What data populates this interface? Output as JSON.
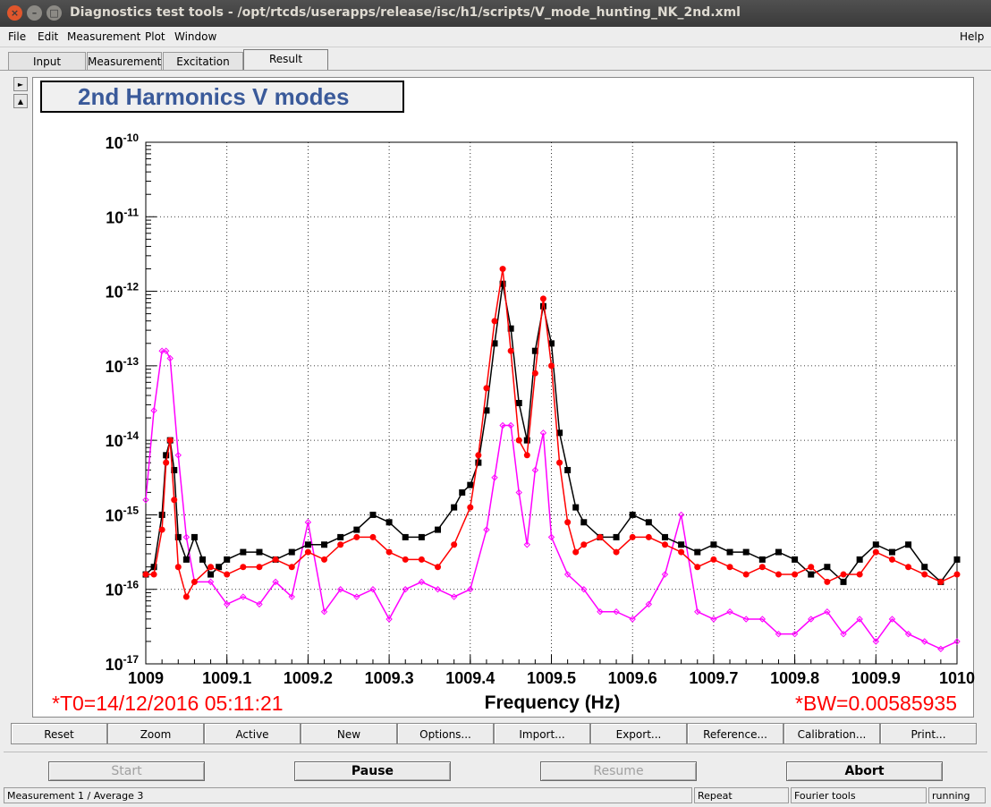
{
  "window": {
    "title": "Diagnostics test tools - /opt/rtcds/userapps/release/isc/h1/scripts/V_mode_hunting_NK_2nd.xml",
    "buttons": {
      "close": "×",
      "minimize": "–",
      "maximize": "□"
    }
  },
  "menu": {
    "items": [
      "File",
      "Edit",
      "Measurement",
      "Plot",
      "Window"
    ],
    "help": "Help"
  },
  "tabs": [
    "Input",
    "Measurement",
    "Excitation",
    "Result"
  ],
  "side_buttons": [
    "►",
    "▲"
  ],
  "plot": {
    "title": "2nd Harmonics V modes",
    "t0_label": "*T0=14/12/2016 05:11:21",
    "bw_label": "*BW=0.00585935",
    "xlabel": "Frequency (Hz)"
  },
  "chart_data": {
    "type": "line",
    "title": "2nd Harmonics V modes",
    "xlabel": "Frequency (Hz)",
    "ylabel": "",
    "xlim": [
      1009.0,
      1010.0
    ],
    "ylim": [
      1e-17,
      1e-10
    ],
    "yscale": "log",
    "grid": true,
    "x_ticks": [
      "1009",
      "1009.1",
      "1009.2",
      "1009.3",
      "1009.4",
      "1009.5",
      "1009.6",
      "1009.7",
      "1009.8",
      "1009.9",
      "1010"
    ],
    "y_ticks": [
      {
        "base": "10",
        "exp": "-17",
        "value": -17
      },
      {
        "base": "10",
        "exp": "-16",
        "value": -16
      },
      {
        "base": "10",
        "exp": "-15",
        "value": -15
      },
      {
        "base": "10",
        "exp": "-14",
        "value": -14
      },
      {
        "base": "10",
        "exp": "-13",
        "value": -13
      },
      {
        "base": "10",
        "exp": "-12",
        "value": -12
      },
      {
        "base": "10",
        "exp": "-11",
        "value": -11
      },
      {
        "base": "10",
        "exp": "-10",
        "value": -10
      }
    ],
    "series": [
      {
        "color": "#000000",
        "marker": "square",
        "x": [
          1009.0,
          1009.01,
          1009.02,
          1009.025,
          1009.03,
          1009.035,
          1009.04,
          1009.05,
          1009.06,
          1009.07,
          1009.08,
          1009.09,
          1009.1,
          1009.12,
          1009.14,
          1009.16,
          1009.18,
          1009.2,
          1009.22,
          1009.24,
          1009.26,
          1009.28,
          1009.3,
          1009.32,
          1009.34,
          1009.36,
          1009.38,
          1009.39,
          1009.4,
          1009.41,
          1009.42,
          1009.43,
          1009.44,
          1009.45,
          1009.46,
          1009.47,
          1009.48,
          1009.49,
          1009.5,
          1009.51,
          1009.52,
          1009.53,
          1009.54,
          1009.56,
          1009.58,
          1009.6,
          1009.62,
          1009.64,
          1009.66,
          1009.68,
          1009.7,
          1009.72,
          1009.74,
          1009.76,
          1009.78,
          1009.8,
          1009.82,
          1009.84,
          1009.86,
          1009.88,
          1009.9,
          1009.92,
          1009.94,
          1009.96,
          1009.98,
          1010.0
        ],
        "log_y": [
          -15.8,
          -15.7,
          -15.0,
          -14.2,
          -14.0,
          -14.4,
          -15.3,
          -15.6,
          -15.3,
          -15.6,
          -15.8,
          -15.7,
          -15.6,
          -15.5,
          -15.5,
          -15.6,
          -15.5,
          -15.4,
          -15.4,
          -15.3,
          -15.2,
          -15.0,
          -15.1,
          -15.3,
          -15.3,
          -15.2,
          -14.9,
          -14.7,
          -14.6,
          -14.3,
          -13.6,
          -12.7,
          -11.9,
          -12.5,
          -13.5,
          -14.0,
          -12.8,
          -12.2,
          -12.7,
          -13.9,
          -14.4,
          -14.9,
          -15.1,
          -15.3,
          -15.3,
          -15.0,
          -15.1,
          -15.3,
          -15.4,
          -15.5,
          -15.4,
          -15.5,
          -15.5,
          -15.6,
          -15.5,
          -15.6,
          -15.8,
          -15.7,
          -15.9,
          -15.6,
          -15.4,
          -15.5,
          -15.4,
          -15.7,
          -15.9,
          -15.6
        ]
      },
      {
        "color": "#ff0000",
        "marker": "circle",
        "x": [
          1009.0,
          1009.01,
          1009.02,
          1009.025,
          1009.03,
          1009.035,
          1009.04,
          1009.05,
          1009.06,
          1009.08,
          1009.1,
          1009.12,
          1009.14,
          1009.16,
          1009.18,
          1009.2,
          1009.22,
          1009.24,
          1009.26,
          1009.28,
          1009.3,
          1009.32,
          1009.34,
          1009.36,
          1009.38,
          1009.4,
          1009.41,
          1009.42,
          1009.43,
          1009.44,
          1009.45,
          1009.46,
          1009.47,
          1009.48,
          1009.49,
          1009.5,
          1009.51,
          1009.52,
          1009.53,
          1009.54,
          1009.56,
          1009.58,
          1009.6,
          1009.62,
          1009.64,
          1009.66,
          1009.68,
          1009.7,
          1009.72,
          1009.74,
          1009.76,
          1009.78,
          1009.8,
          1009.82,
          1009.84,
          1009.86,
          1009.88,
          1009.9,
          1009.92,
          1009.94,
          1009.96,
          1009.98,
          1010.0
        ],
        "log_y": [
          -15.8,
          -15.8,
          -15.2,
          -14.3,
          -14.0,
          -14.8,
          -15.7,
          -16.1,
          -15.9,
          -15.7,
          -15.8,
          -15.7,
          -15.7,
          -15.6,
          -15.7,
          -15.5,
          -15.6,
          -15.4,
          -15.3,
          -15.3,
          -15.5,
          -15.6,
          -15.6,
          -15.7,
          -15.4,
          -14.9,
          -14.2,
          -13.3,
          -12.4,
          -11.7,
          -12.8,
          -14.0,
          -14.2,
          -13.1,
          -12.1,
          -13.0,
          -14.3,
          -15.1,
          -15.5,
          -15.4,
          -15.3,
          -15.5,
          -15.3,
          -15.3,
          -15.4,
          -15.5,
          -15.7,
          -15.6,
          -15.7,
          -15.8,
          -15.7,
          -15.8,
          -15.8,
          -15.7,
          -15.9,
          -15.8,
          -15.8,
          -15.5,
          -15.6,
          -15.7,
          -15.8,
          -15.9,
          -15.8
        ]
      },
      {
        "color": "#ff00ff",
        "marker": "diamond",
        "x": [
          1009.0,
          1009.01,
          1009.02,
          1009.025,
          1009.03,
          1009.04,
          1009.05,
          1009.06,
          1009.08,
          1009.1,
          1009.12,
          1009.14,
          1009.16,
          1009.18,
          1009.2,
          1009.22,
          1009.24,
          1009.26,
          1009.28,
          1009.3,
          1009.32,
          1009.34,
          1009.36,
          1009.38,
          1009.4,
          1009.42,
          1009.43,
          1009.44,
          1009.45,
          1009.46,
          1009.47,
          1009.48,
          1009.49,
          1009.5,
          1009.52,
          1009.54,
          1009.56,
          1009.58,
          1009.6,
          1009.62,
          1009.64,
          1009.66,
          1009.68,
          1009.7,
          1009.72,
          1009.74,
          1009.76,
          1009.78,
          1009.8,
          1009.82,
          1009.84,
          1009.86,
          1009.88,
          1009.9,
          1009.92,
          1009.94,
          1009.96,
          1009.98,
          1010.0
        ],
        "log_y": [
          -14.8,
          -13.6,
          -12.8,
          -12.8,
          -12.9,
          -14.2,
          -15.3,
          -15.9,
          -15.9,
          -16.2,
          -16.1,
          -16.2,
          -15.9,
          -16.1,
          -15.1,
          -16.3,
          -16.0,
          -16.1,
          -16.0,
          -16.4,
          -16.0,
          -15.9,
          -16.0,
          -16.1,
          -16.0,
          -15.2,
          -14.5,
          -13.8,
          -13.8,
          -14.7,
          -15.4,
          -14.4,
          -13.9,
          -15.3,
          -15.8,
          -16.0,
          -16.3,
          -16.3,
          -16.4,
          -16.2,
          -15.8,
          -15.0,
          -16.3,
          -16.4,
          -16.3,
          -16.4,
          -16.4,
          -16.6,
          -16.6,
          -16.4,
          -16.3,
          -16.6,
          -16.4,
          -16.7,
          -16.4,
          -16.6,
          -16.7,
          -16.8,
          -16.7
        ]
      }
    ]
  },
  "buttons": [
    "Reset",
    "Zoom",
    "Active",
    "New",
    "Options...",
    "Import...",
    "Export...",
    "Reference...",
    "Calibration...",
    "Print..."
  ],
  "controls": {
    "start": "Start",
    "pause": "Pause",
    "resume": "Resume",
    "abort": "Abort"
  },
  "status": {
    "left": "Measurement 1 / Average 3",
    "repeat": "Repeat",
    "fourier": "Fourier tools",
    "state": "running"
  }
}
